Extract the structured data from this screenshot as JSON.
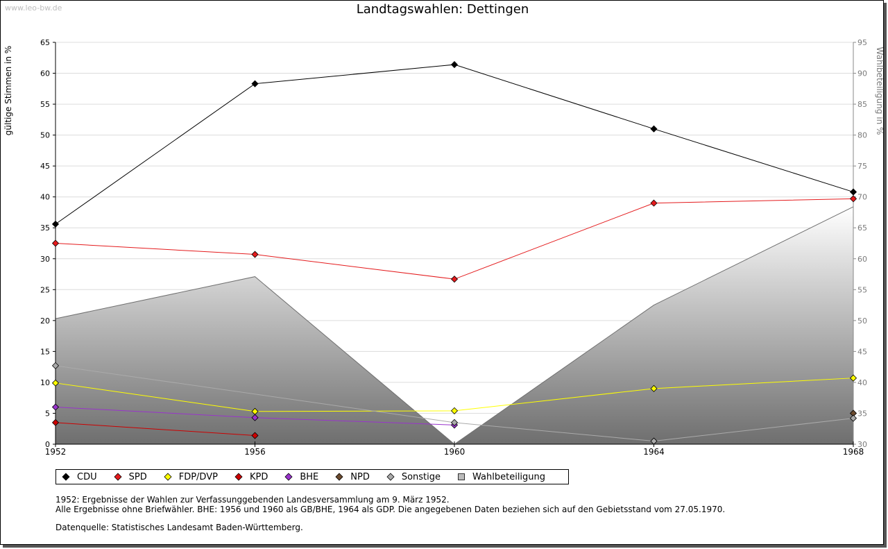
{
  "watermark": "www.leo-bw.de",
  "chart_data": {
    "type": "line",
    "title": "Landtagswahlen: Dettingen",
    "ylabel": "gültige Stimmen in %",
    "ylabel_right": "Wahlbeteiligung in %",
    "x": [
      "1952",
      "1956",
      "1960",
      "1964",
      "1968"
    ],
    "ylim": [
      0,
      65
    ],
    "yticks": [
      0,
      5,
      10,
      15,
      20,
      25,
      30,
      35,
      40,
      45,
      50,
      55,
      60,
      65
    ],
    "ylim_right": [
      30,
      95
    ],
    "yticks_right": [
      30,
      35,
      40,
      45,
      50,
      55,
      60,
      65,
      70,
      75,
      80,
      85,
      90,
      95
    ],
    "grid": true,
    "legend_position": "bottom",
    "area": {
      "name": "Wahlbeteiligung",
      "values": [
        50.3,
        57.1,
        30.0,
        52.5,
        68.4
      ],
      "color": "#808080"
    },
    "series": [
      {
        "name": "CDU",
        "color": "#000000",
        "values": [
          35.6,
          58.3,
          61.4,
          51.0,
          40.8
        ]
      },
      {
        "name": "SPD",
        "color": "#e41a1c",
        "values": [
          32.5,
          30.7,
          26.7,
          39.0,
          39.7
        ]
      },
      {
        "name": "FDP/DVP",
        "color": "#ffff00",
        "values": [
          9.9,
          5.3,
          5.4,
          9.0,
          10.7
        ]
      },
      {
        "name": "KPD",
        "color": "#cc0000",
        "values": [
          3.5,
          1.4,
          null,
          null,
          null
        ]
      },
      {
        "name": "BHE",
        "color": "#9933cc",
        "values": [
          6.0,
          4.3,
          3.1,
          null,
          null
        ]
      },
      {
        "name": "NPD",
        "color": "#6b4a2e",
        "values": [
          null,
          null,
          null,
          null,
          5.0
        ]
      },
      {
        "name": "Sonstige",
        "color": "#aaaaaa",
        "values": [
          12.7,
          null,
          3.5,
          0.5,
          4.2
        ]
      }
    ]
  },
  "legend": [
    {
      "label": "CDU",
      "color": "#000000",
      "shape": "diamond"
    },
    {
      "label": "SPD",
      "color": "#e41a1c",
      "shape": "diamond"
    },
    {
      "label": "FDP/DVP",
      "color": "#ffff00",
      "shape": "diamond"
    },
    {
      "label": "KPD",
      "color": "#cc0000",
      "shape": "diamond"
    },
    {
      "label": "BHE",
      "color": "#9933cc",
      "shape": "diamond"
    },
    {
      "label": "NPD",
      "color": "#6b4a2e",
      "shape": "diamond"
    },
    {
      "label": "Sonstige",
      "color": "#aaaaaa",
      "shape": "diamond"
    },
    {
      "label": "Wahlbeteiligung",
      "color": "#bbbbbb",
      "shape": "square"
    }
  ],
  "notes": {
    "line1": "1952: Ergebnisse der Wahlen zur Verfassunggebenden Landesversammlung am 9. März 1952.",
    "line2": "Alle Ergebnisse ohne Briefwähler. BHE: 1956 und 1960 als GB/BHE, 1964 als GDP. Die angegebenen Daten beziehen sich auf den Gebietsstand vom 27.05.1970.",
    "source": "Datenquelle: Statistisches Landesamt Baden-Württemberg."
  }
}
